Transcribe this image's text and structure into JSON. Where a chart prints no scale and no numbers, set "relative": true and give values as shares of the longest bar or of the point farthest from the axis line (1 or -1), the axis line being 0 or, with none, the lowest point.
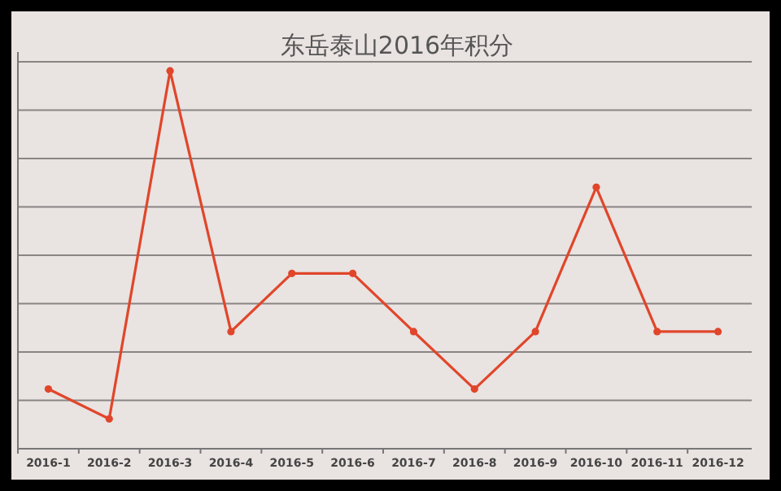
{
  "chart_data": {
    "type": "line",
    "title": "东岳泰山2016年积分",
    "categories": [
      "2016-1",
      "2016-2",
      "2016-3",
      "2016-4",
      "2016-5",
      "2016-6",
      "2016-7",
      "2016-8",
      "2016-9",
      "2016-10",
      "2016-11",
      "2016-12"
    ],
    "series": [
      {
        "color": "#e0462a",
        "values": [
          0.158,
          0.079,
          1,
          0.31,
          0.464,
          0.464,
          0.31,
          0.158,
          0.31,
          0.692,
          0.31,
          0.31
        ]
      }
    ],
    "relative": true,
    "grid": "y",
    "marker": "circle",
    "line_style": "solid"
  }
}
